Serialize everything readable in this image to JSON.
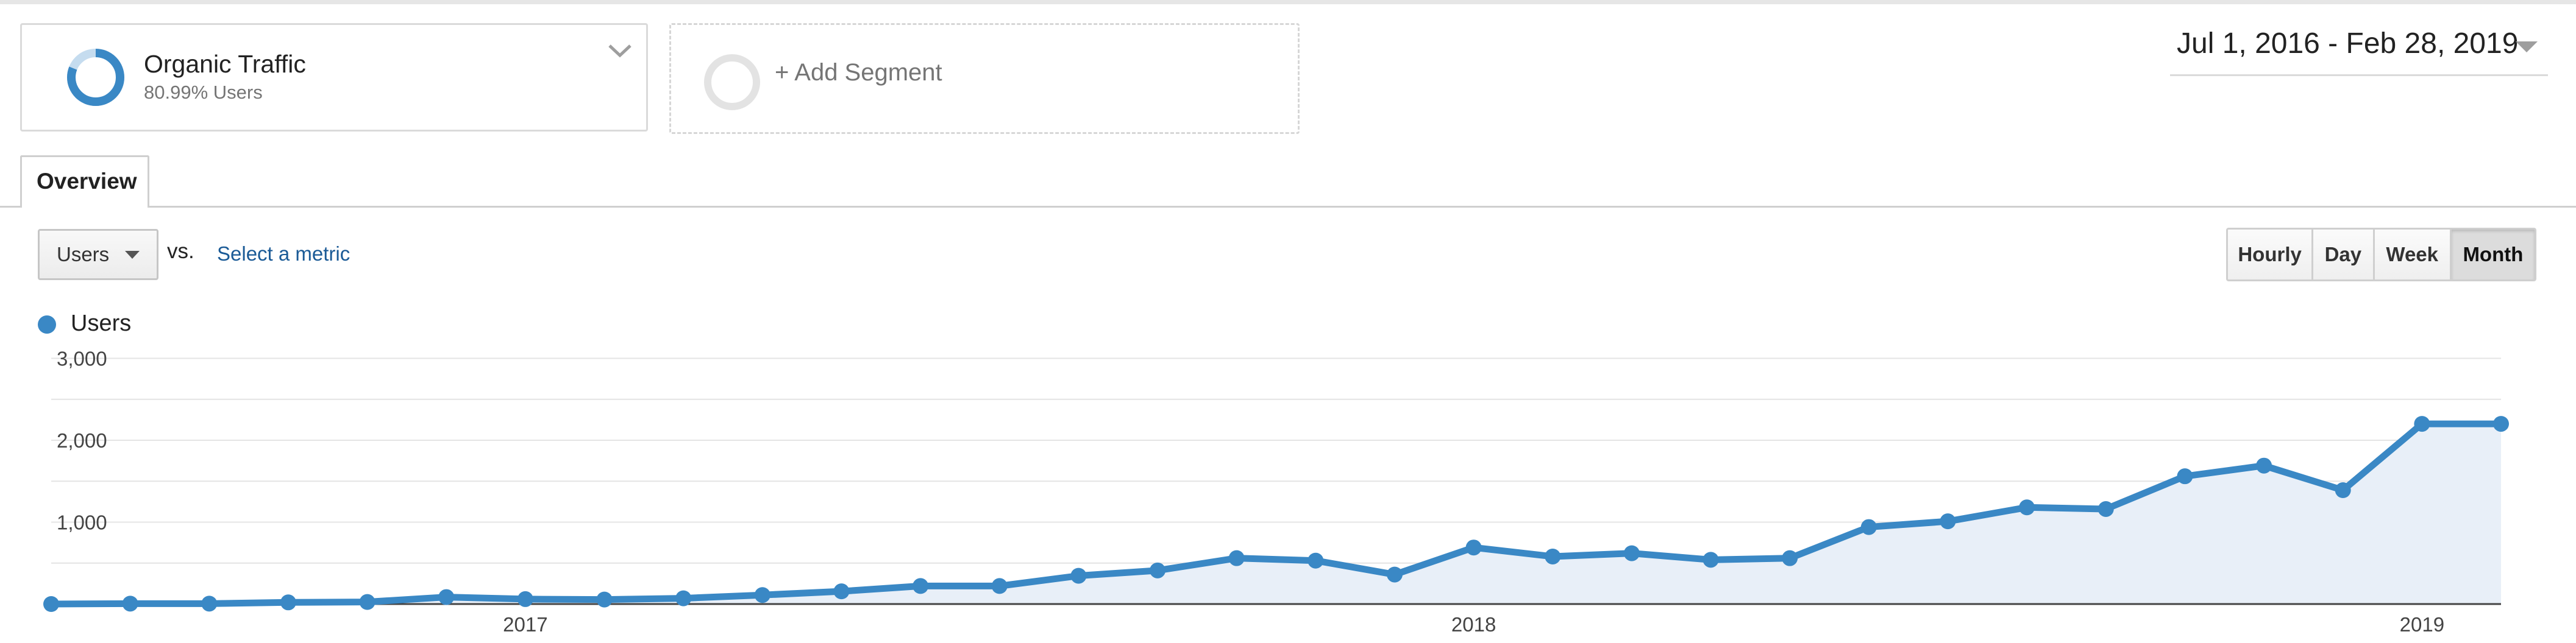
{
  "segment": {
    "name": "Organic Traffic",
    "subtitle": "80.99% Users",
    "share": 0.8099,
    "add_label": "+ Add Segment"
  },
  "date_range": {
    "label": "Jul 1, 2016 - Feb 28, 2019"
  },
  "tabs": [
    {
      "label": "Overview",
      "active": true
    }
  ],
  "metric": {
    "selected": "Users",
    "vs_label": "vs.",
    "select_metric_label": "Select a metric"
  },
  "granularity": [
    {
      "label": "Hourly",
      "active": false
    },
    {
      "label": "Day",
      "active": false
    },
    {
      "label": "Week",
      "active": false
    },
    {
      "label": "Month",
      "active": true
    }
  ],
  "colors": {
    "series": "#3a88c5",
    "area": "#e8eff8",
    "grid": "#e4e4e4",
    "segment_ring_track": "#c5dcef"
  },
  "icons": {
    "segment_chevron": "chevron-down-icon",
    "date_caret": "caret-down-icon",
    "metric_caret": "caret-down-icon"
  },
  "chart_data": {
    "type": "area",
    "x": [
      "2016-07",
      "2016-08",
      "2016-09",
      "2016-10",
      "2016-11",
      "2016-12",
      "2017-01",
      "2017-02",
      "2017-03",
      "2017-04",
      "2017-05",
      "2017-06",
      "2017-07",
      "2017-08",
      "2017-09",
      "2017-10",
      "2017-11",
      "2017-12",
      "2018-01",
      "2018-02",
      "2018-03",
      "2018-04",
      "2018-05",
      "2018-06",
      "2018-07",
      "2018-08",
      "2018-09",
      "2018-10",
      "2018-11",
      "2018-12",
      "2019-01",
      "2019-02"
    ],
    "series": [
      {
        "name": "Users",
        "values": [
          0,
          5,
          5,
          20,
          25,
          85,
          60,
          55,
          70,
          110,
          155,
          220,
          220,
          345,
          410,
          560,
          530,
          360,
          690,
          580,
          620,
          540,
          560,
          940,
          1010,
          1180,
          1160,
          1560,
          1690,
          1390,
          2200,
          2200
        ]
      }
    ],
    "ylim": [
      0,
      3000
    ],
    "yticks": [
      1000,
      2000,
      3000
    ],
    "ytick_labels": [
      "1,000",
      "2,000",
      "3,000"
    ],
    "xtick_labels": [
      {
        "label": "2017",
        "at": "2017-01"
      },
      {
        "label": "2018",
        "at": "2018-01"
      },
      {
        "label": "2019",
        "at": "2019-01"
      }
    ],
    "grid": true,
    "legend": "top-left"
  }
}
